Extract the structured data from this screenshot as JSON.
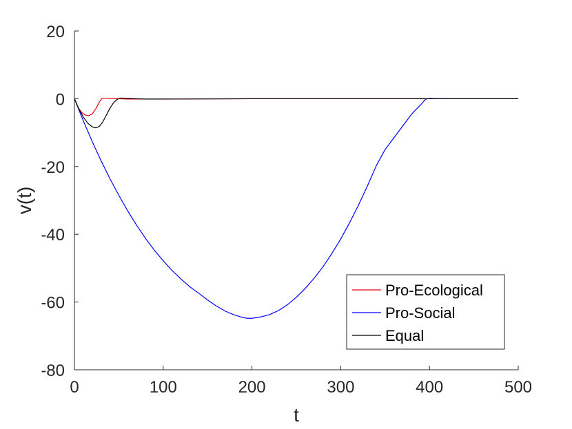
{
  "chart_data": {
    "type": "line",
    "xlabel": "t",
    "ylabel": "v(t)",
    "xlim": [
      0,
      500
    ],
    "ylim": [
      -80,
      20
    ],
    "xticks": [
      0,
      100,
      200,
      300,
      400,
      500
    ],
    "xtick_labels": [
      "0",
      "100",
      "200",
      "300",
      "400",
      "500"
    ],
    "yticks": [
      -80,
      -60,
      -40,
      -20,
      0,
      20
    ],
    "ytick_labels": [
      "-80",
      "-60",
      "-40",
      "-20",
      "0",
      "20"
    ],
    "grid": false,
    "legend_position": "bottom-right",
    "series": [
      {
        "name": "Pro-Ecological",
        "color": "#e8000b",
        "x": [
          0,
          4,
          8,
          12,
          16,
          20,
          24,
          28,
          31,
          34,
          40,
          50,
          60,
          80,
          100,
          200,
          300,
          400,
          500
        ],
        "y": [
          0,
          -2.5,
          -4.0,
          -4.8,
          -5.0,
          -4.5,
          -3.0,
          -1.0,
          0.1,
          0.2,
          0.1,
          0.0,
          -0.1,
          -0.1,
          -0.1,
          0.0,
          0.0,
          0.0,
          0.0
        ]
      },
      {
        "name": "Pro-Social",
        "color": "#0000ff",
        "x": [
          0,
          10,
          20,
          30,
          40,
          50,
          60,
          70,
          80,
          90,
          100,
          110,
          120,
          130,
          140,
          150,
          160,
          170,
          180,
          190,
          195,
          200,
          210,
          220,
          230,
          240,
          250,
          260,
          270,
          280,
          290,
          300,
          310,
          320,
          330,
          340,
          350,
          360,
          370,
          380,
          390,
          394,
          396,
          400,
          410,
          420,
          450,
          500
        ],
        "y": [
          0,
          -6.5,
          -12.6,
          -18.3,
          -23.6,
          -28.5,
          -33.1,
          -37.3,
          -41.2,
          -44.7,
          -47.8,
          -50.7,
          -53.2,
          -55.5,
          -57.4,
          -59.4,
          -61.2,
          -62.7,
          -63.8,
          -64.6,
          -64.8,
          -64.8,
          -64.4,
          -63.7,
          -62.5,
          -60.8,
          -58.6,
          -56.0,
          -53.0,
          -49.6,
          -45.7,
          -41.4,
          -36.6,
          -31.4,
          -25.8,
          -19.8,
          -15.0,
          -11.5,
          -8.0,
          -4.5,
          -1.8,
          -0.6,
          -0.1,
          0.1,
          0.0,
          0.0,
          0.0,
          0.0
        ]
      },
      {
        "name": "Equal",
        "color": "#000000",
        "x": [
          0,
          5,
          10,
          15,
          20,
          24,
          28,
          32,
          36,
          40,
          44,
          48,
          52,
          56,
          60,
          70,
          80,
          100,
          200,
          300,
          400,
          500
        ],
        "y": [
          0,
          -3.0,
          -5.4,
          -7.2,
          -8.3,
          -8.6,
          -8.2,
          -6.8,
          -4.8,
          -2.8,
          -1.2,
          -0.2,
          0.2,
          0.2,
          0.1,
          0.0,
          -0.1,
          -0.1,
          0.0,
          0.0,
          0.0,
          0.0
        ]
      }
    ]
  }
}
